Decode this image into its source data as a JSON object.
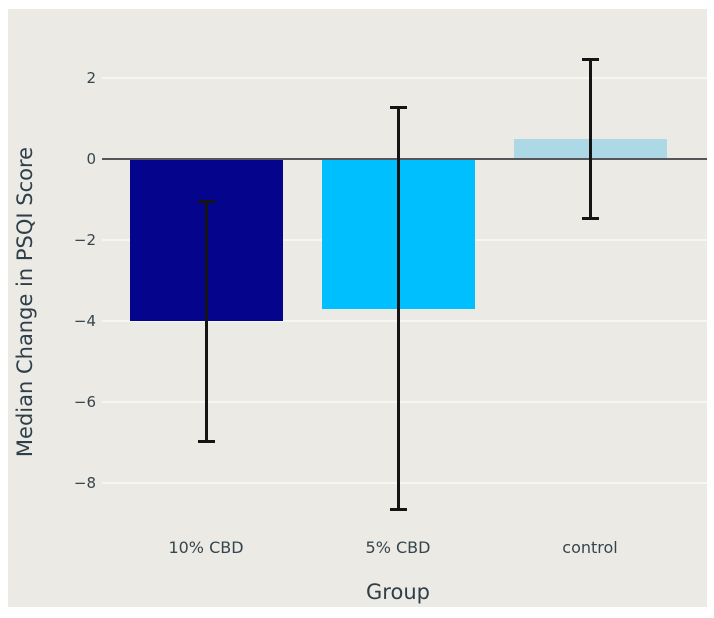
{
  "figure": {
    "background": "#ffffff",
    "panel_background": "#eceae4",
    "text_color": "#36454d",
    "zero_line_color": "#56565a",
    "error_bar_color": "#141414"
  },
  "chart_data": {
    "type": "bar",
    "title": "",
    "xlabel": "Group",
    "ylabel": "Median Change in PSQI Score",
    "categories": [
      "10% CBD",
      "5% CBD",
      "control"
    ],
    "values": [
      -4.0,
      -3.7,
      0.5
    ],
    "error_high": [
      -1.0,
      1.3,
      2.5
    ],
    "error_low": [
      -7.0,
      -8.7,
      -1.5
    ],
    "bar_colors": [
      "#04048c",
      "#00bfff",
      "#add8e6"
    ],
    "ytick_values": [
      2,
      0,
      -2,
      -4,
      -6,
      -8
    ],
    "ytick_labels": [
      "2",
      "0",
      "−2",
      "−4",
      "−6",
      "−8"
    ],
    "ylim": [
      -11.1,
      3.7
    ],
    "grid": true,
    "legend": null,
    "zero_line": true
  }
}
